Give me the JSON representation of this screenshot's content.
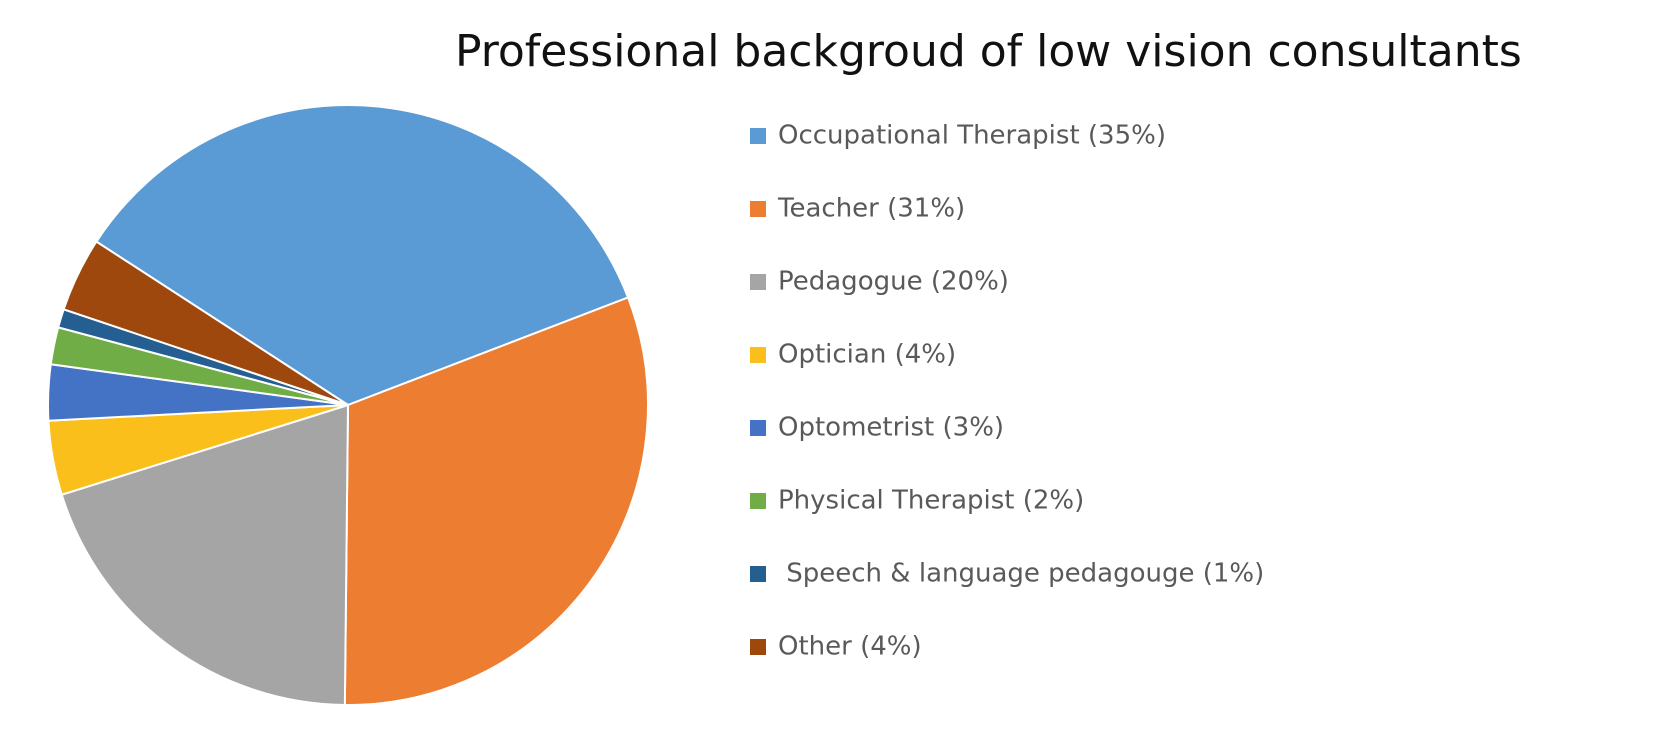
{
  "chart_data": {
    "type": "pie",
    "title": "Professional backgroud of low vision consultants",
    "categories": [
      "Occupational Therapist (35%)",
      "Teacher (31%)",
      "Pedagogue (20%)",
      "Optician (4%)",
      "Optometrist (3%)",
      "Physical Therapist (2%)",
      " Speech & language pedagouge (1%)",
      "Other (4%)"
    ],
    "values": [
      35,
      31,
      20,
      4,
      3,
      2,
      1,
      4
    ],
    "colors": [
      "#5b9bd5",
      "#ed7d31",
      "#a5a5a5",
      "#fbbf1c",
      "#4472c4",
      "#70ad47",
      "#255e91",
      "#9e480e"
    ],
    "legend": "right"
  }
}
